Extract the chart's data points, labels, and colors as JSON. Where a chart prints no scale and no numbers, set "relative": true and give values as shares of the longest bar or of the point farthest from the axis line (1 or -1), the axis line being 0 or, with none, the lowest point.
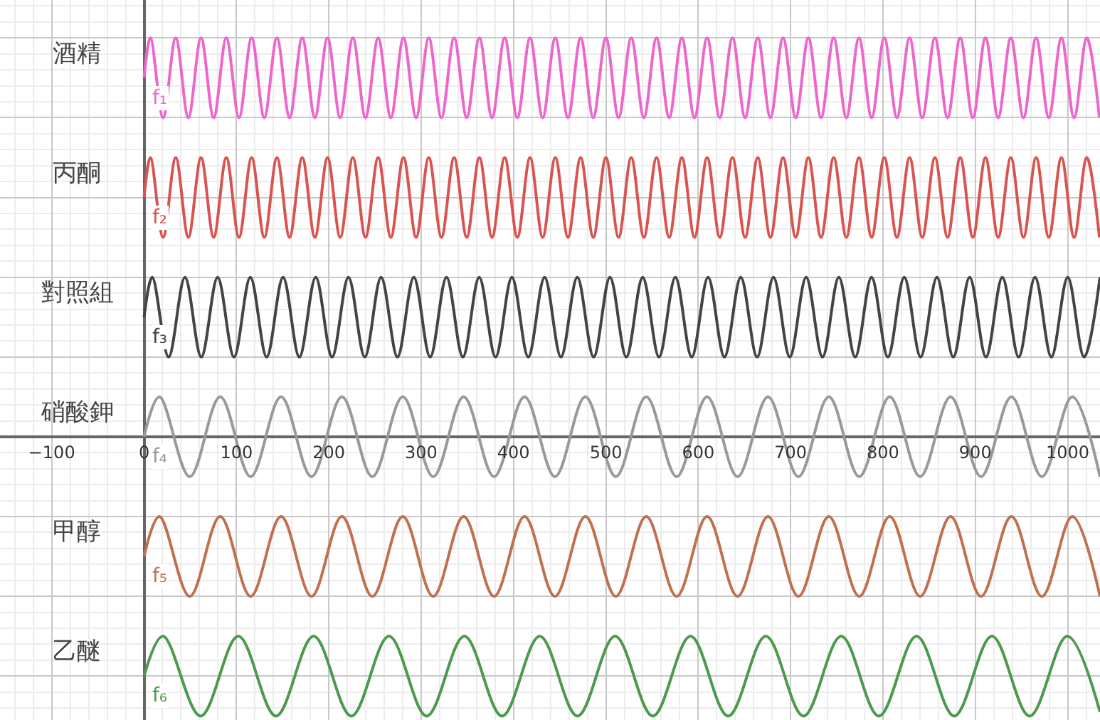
{
  "chart_data": {
    "type": "line",
    "relative": true,
    "xlim": [
      -156,
      1035
    ],
    "xticks": [
      -100,
      0,
      100,
      200,
      300,
      400,
      500,
      600,
      700,
      800,
      900,
      1000
    ],
    "grid": true,
    "legend": false,
    "marker": "none",
    "line_style": "solid",
    "annotations": [
      "f₁",
      "f₂",
      "f₃",
      "f₄",
      "f₅",
      "f₆"
    ],
    "series": [
      {
        "name": "酒精",
        "color": "#ee66cc",
        "x": [
          0,
          6.85,
          20.55,
          34.25,
          47.95,
          61.65,
          75.35,
          89.05,
          102.75,
          116.45,
          130.15,
          143.85,
          157.55,
          171.25,
          184.95,
          198.65,
          212.35,
          226.05,
          239.75,
          253.45,
          267.15,
          280.85,
          294.55,
          308.25,
          321.95,
          335.65,
          349.35,
          363.05,
          376.75,
          390.45,
          404.15,
          417.85,
          431.55,
          445.25,
          458.95,
          472.65,
          486.35,
          500.05,
          513.75,
          527.45,
          541.15,
          554.85,
          568.55,
          582.25,
          595.95,
          609.65,
          623.35,
          637.05,
          650.75,
          664.45,
          678.15,
          691.85,
          705.55,
          719.25,
          732.95,
          746.65,
          760.35,
          774.05,
          787.75,
          801.45,
          815.15,
          828.85,
          842.55,
          856.25,
          869.95,
          883.65,
          897.35,
          911.05,
          924.75,
          938.45,
          952.15,
          965.85,
          979.55,
          993.25,
          1006.95,
          1020.65,
          1034.35
        ],
        "values": [
          0.9,
          1.0,
          0.8,
          1.0,
          0.8,
          1.0,
          0.8,
          1.0,
          0.8,
          1.0,
          0.8,
          1.0,
          0.8,
          1.0,
          0.8,
          1.0,
          0.8,
          1.0,
          0.8,
          1.0,
          0.8,
          1.0,
          0.8,
          1.0,
          0.8,
          1.0,
          0.8,
          1.0,
          0.8,
          1.0,
          0.8,
          1.0,
          0.8,
          1.0,
          0.8,
          1.0,
          0.8,
          1.0,
          0.8,
          1.0,
          0.8,
          1.0,
          0.8,
          1.0,
          0.8,
          1.0,
          0.8,
          1.0,
          0.8,
          1.0,
          0.8,
          1.0,
          0.8,
          1.0,
          0.8,
          1.0,
          0.8,
          1.0,
          0.8,
          1.0,
          0.8,
          1.0,
          0.8,
          1.0,
          0.8,
          1.0,
          0.8,
          1.0,
          0.8,
          1.0,
          0.8,
          1.0,
          0.8,
          1.0,
          0.8,
          1.0,
          0.8
        ]
      },
      {
        "name": "丙酮",
        "color": "#d9534f",
        "x": [
          0,
          6.85,
          20.55,
          34.25,
          47.95,
          61.65,
          75.35,
          89.05,
          102.75,
          116.45,
          130.15,
          143.85,
          157.55,
          171.25,
          184.95,
          198.65,
          212.35,
          226.05,
          239.75,
          253.45,
          267.15,
          280.85,
          294.55,
          308.25,
          321.95,
          335.65,
          349.35,
          363.05,
          376.75,
          390.45,
          404.15,
          417.85,
          431.55,
          445.25,
          458.95,
          472.65,
          486.35,
          500.05,
          513.75,
          527.45,
          541.15,
          554.85,
          568.55,
          582.25,
          595.95,
          609.65,
          623.35,
          637.05,
          650.75,
          664.45,
          678.15,
          691.85,
          705.55,
          719.25,
          732.95,
          746.65,
          760.35,
          774.05,
          787.75,
          801.45,
          815.15,
          828.85,
          842.55,
          856.25,
          869.95,
          883.65,
          897.35,
          911.05,
          924.75,
          938.45,
          952.15,
          965.85,
          979.55,
          993.25,
          1006.95,
          1020.65,
          1034.35
        ],
        "values": [
          0.6,
          0.7,
          0.5,
          0.7,
          0.5,
          0.7,
          0.5,
          0.7,
          0.5,
          0.7,
          0.5,
          0.7,
          0.5,
          0.7,
          0.5,
          0.7,
          0.5,
          0.7,
          0.5,
          0.7,
          0.5,
          0.7,
          0.5,
          0.7,
          0.5,
          0.7,
          0.5,
          0.7,
          0.5,
          0.7,
          0.5,
          0.7,
          0.5,
          0.7,
          0.5,
          0.7,
          0.5,
          0.7,
          0.5,
          0.7,
          0.5,
          0.7,
          0.5,
          0.7,
          0.5,
          0.7,
          0.5,
          0.7,
          0.5,
          0.7,
          0.5,
          0.7,
          0.5,
          0.7,
          0.5,
          0.7,
          0.5,
          0.7,
          0.5,
          0.7,
          0.5,
          0.7,
          0.5,
          0.7,
          0.5,
          0.7,
          0.5,
          0.7,
          0.5,
          0.7,
          0.5,
          0.7,
          0.5,
          0.7,
          0.5,
          0.7,
          0.5
        ]
      },
      {
        "name": "對照組",
        "color": "#444444",
        "x": [
          0,
          8.85,
          26.55,
          44.25,
          61.95,
          79.65,
          97.35,
          115.05,
          132.75,
          150.45,
          168.15,
          185.85,
          203.55,
          221.25,
          238.95,
          256.65,
          274.35,
          292.05,
          309.75,
          327.45,
          345.15,
          362.85,
          380.55,
          398.25,
          415.95,
          433.65,
          451.35,
          469.05,
          486.75,
          504.45,
          522.15,
          539.85,
          557.55,
          575.25,
          592.95,
          610.65,
          628.35,
          646.05,
          663.75,
          681.45,
          699.15,
          716.85,
          734.55,
          752.25,
          769.95,
          787.65,
          805.35,
          823.05,
          840.75,
          858.45,
          876.15,
          893.85,
          911.55,
          929.25,
          946.95,
          964.65,
          982.35,
          1000.05,
          1017.75,
          1035
        ],
        "values": [
          0.3,
          0.4,
          0.2,
          0.4,
          0.2,
          0.4,
          0.2,
          0.4,
          0.2,
          0.4,
          0.2,
          0.4,
          0.2,
          0.4,
          0.2,
          0.4,
          0.2,
          0.4,
          0.2,
          0.4,
          0.2,
          0.4,
          0.2,
          0.4,
          0.2,
          0.4,
          0.2,
          0.4,
          0.2,
          0.4,
          0.2,
          0.4,
          0.2,
          0.4,
          0.2,
          0.4,
          0.2,
          0.4,
          0.2,
          0.4,
          0.2,
          0.4,
          0.2,
          0.4,
          0.2,
          0.4,
          0.2,
          0.4,
          0.2,
          0.4,
          0.2,
          0.4,
          0.2,
          0.4,
          0.2,
          0.4,
          0.2,
          0.4,
          0.2,
          0.4
        ]
      },
      {
        "name": "硝酸鉀",
        "color": "#999999",
        "x": [
          0,
          16.5,
          49.45,
          82.4,
          115.35,
          148.3,
          181.25,
          214.2,
          247.15,
          280.1,
          313.05,
          346,
          378.95,
          411.9,
          444.85,
          477.8,
          510.75,
          543.7,
          576.65,
          609.6,
          642.55,
          675.5,
          708.45,
          741.4,
          774.35,
          807.3,
          840.25,
          873.2,
          906.15,
          939.1,
          972.05,
          1005,
          1035
        ],
        "values": [
          0,
          0.1,
          -0.1,
          0.1,
          -0.1,
          0.1,
          -0.1,
          0.1,
          -0.1,
          0.1,
          -0.1,
          0.1,
          -0.1,
          0.1,
          -0.1,
          0.1,
          -0.1,
          0.1,
          -0.1,
          0.1,
          -0.1,
          0.1,
          -0.1,
          0.1,
          -0.1,
          0.1,
          -0.1,
          0.1,
          -0.1,
          0.1,
          -0.1,
          0.1,
          -0.1
        ]
      },
      {
        "name": "甲醇",
        "color": "#c0704f",
        "x": [
          0,
          16.5,
          49.45,
          82.4,
          115.35,
          148.3,
          181.25,
          214.2,
          247.15,
          280.1,
          313.05,
          346,
          378.95,
          411.9,
          444.85,
          477.8,
          510.75,
          543.7,
          576.65,
          609.6,
          642.55,
          675.5,
          708.45,
          741.4,
          774.35,
          807.3,
          840.25,
          873.2,
          906.15,
          939.1,
          972.05,
          1005,
          1035
        ],
        "values": [
          -0.3,
          -0.2,
          -0.4,
          -0.2,
          -0.4,
          -0.2,
          -0.4,
          -0.2,
          -0.4,
          -0.2,
          -0.4,
          -0.2,
          -0.4,
          -0.2,
          -0.4,
          -0.2,
          -0.4,
          -0.2,
          -0.4,
          -0.2,
          -0.4,
          -0.2,
          -0.4,
          -0.2,
          -0.4,
          -0.2,
          -0.4,
          -0.2,
          -0.4,
          -0.2,
          -0.4,
          -0.2,
          -0.4
        ]
      },
      {
        "name": "乙醚",
        "color": "#4c9a4c",
        "x": [
          0,
          20.4,
          61.2,
          102,
          142.8,
          183.6,
          224.4,
          265.2,
          306,
          346.8,
          387.6,
          428.4,
          469.2,
          510,
          550.8,
          591.6,
          632.4,
          673.2,
          714,
          754.8,
          795.6,
          836.4,
          877.2,
          918,
          958.8,
          999.6,
          1035
        ],
        "values": [
          -0.6,
          -0.5,
          -0.7,
          -0.5,
          -0.7,
          -0.5,
          -0.7,
          -0.5,
          -0.7,
          -0.5,
          -0.7,
          -0.5,
          -0.7,
          -0.5,
          -0.7,
          -0.5,
          -0.7,
          -0.5,
          -0.7,
          -0.5,
          -0.7,
          -0.5,
          -0.7,
          -0.5,
          -0.7,
          -0.5,
          -0.69
        ]
      }
    ]
  }
}
